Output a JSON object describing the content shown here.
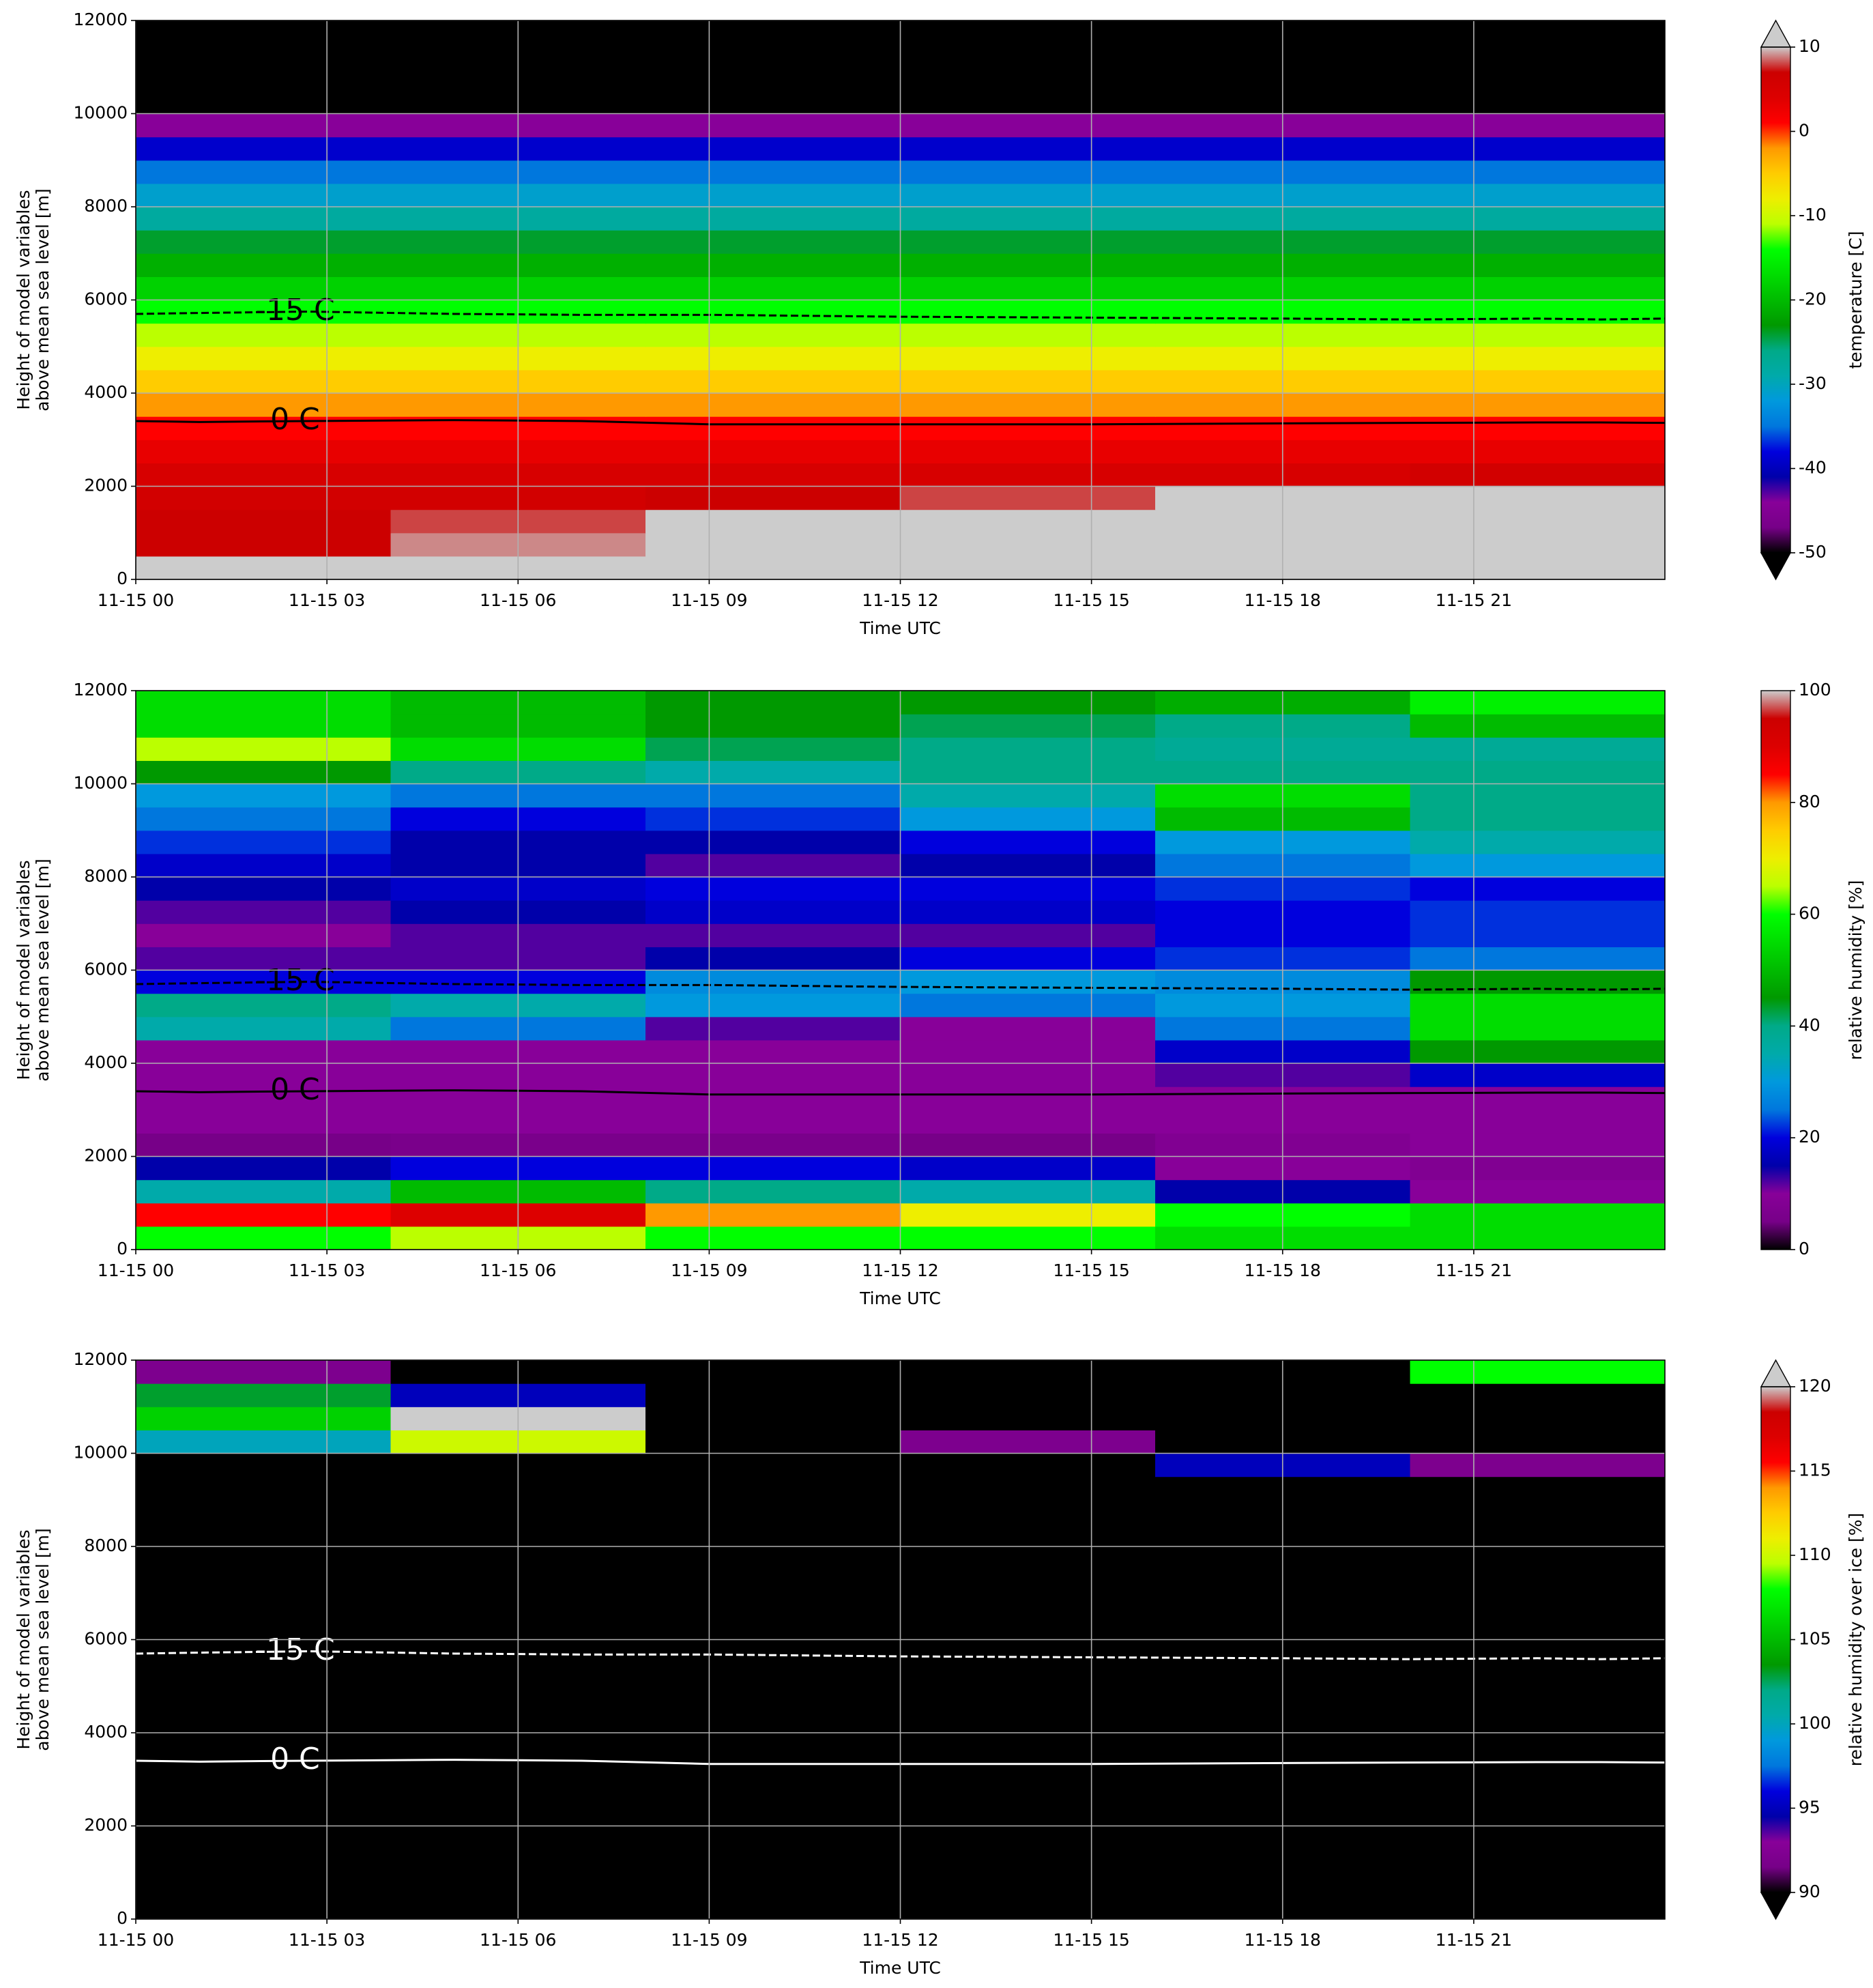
{
  "chart_data": [
    {
      "type": "heatmap",
      "xlabel": "Time UTC",
      "ylabel": [
        "Height of model variables",
        "above mean sea level [m]"
      ],
      "x": [
        0,
        4,
        8,
        12,
        16,
        20,
        24
      ],
      "y": [
        0,
        500,
        1000,
        1500,
        2000,
        2500,
        3000,
        3500,
        4000,
        4500,
        5000,
        5500,
        6000,
        6500,
        7000,
        7500,
        8000,
        8500,
        9000,
        9500,
        10000,
        10500,
        11000,
        11500,
        12000
      ],
      "z": [
        [
          12,
          12,
          12,
          12,
          12,
          12
        ],
        [
          7,
          9,
          12,
          12,
          12,
          12
        ],
        [
          7,
          8,
          11,
          12,
          12,
          12
        ],
        [
          6,
          6,
          7,
          8,
          11,
          12
        ],
        [
          5,
          5,
          5,
          5,
          5,
          6
        ],
        [
          3,
          3,
          3,
          3,
          3,
          3
        ],
        [
          1,
          1,
          1,
          1,
          1,
          1
        ],
        [
          -2,
          -2,
          -2,
          -2,
          -2,
          -2
        ],
        [
          -5,
          -5,
          -5,
          -5,
          -5,
          -5
        ],
        [
          -8,
          -8,
          -8,
          -8,
          -8,
          -8
        ],
        [
          -11,
          -11,
          -11,
          -11,
          -11,
          -11
        ],
        [
          -14,
          -14,
          -14,
          -14,
          -14,
          -14
        ],
        [
          -18,
          -18,
          -18,
          -18,
          -18,
          -18
        ],
        [
          -21,
          -21,
          -21,
          -21,
          -21,
          -21
        ],
        [
          -24,
          -24,
          -24,
          -24,
          -24,
          -24
        ],
        [
          -28,
          -28,
          -28,
          -28,
          -28,
          -28
        ],
        [
          -31,
          -31,
          -31,
          -31,
          -31,
          -31
        ],
        [
          -35,
          -35,
          -35,
          -35,
          -35,
          -35
        ],
        [
          -39,
          -39,
          -39,
          -39,
          -39,
          -39
        ],
        [
          -44,
          -44,
          -44,
          -44,
          -44,
          -44
        ],
        [
          -55,
          -55,
          -55,
          -55,
          -55,
          -55
        ],
        [
          -55,
          -55,
          -55,
          -55,
          -55,
          -55
        ],
        [
          -55,
          -55,
          -55,
          -55,
          -55,
          -55
        ],
        [
          -55,
          -55,
          -55,
          -55,
          -55,
          -55
        ]
      ],
      "xlim": [
        0,
        24
      ],
      "ylim": [
        0,
        12000
      ],
      "xticks": [
        {
          "value": 0,
          "label": "11-15 00"
        },
        {
          "value": 3,
          "label": "11-15 03"
        },
        {
          "value": 6,
          "label": "11-15 06"
        },
        {
          "value": 9,
          "label": "11-15 09"
        },
        {
          "value": 12,
          "label": "11-15 12"
        },
        {
          "value": 15,
          "label": "11-15 15"
        },
        {
          "value": 18,
          "label": "11-15 18"
        },
        {
          "value": 21,
          "label": "11-15 21"
        }
      ],
      "yticks": [
        0,
        2000,
        4000,
        6000,
        8000,
        10000,
        12000
      ],
      "grid": true,
      "colormap": "nipy_spectral",
      "colorbar": {
        "label": "temperature [C]",
        "clim": [
          -50,
          10
        ],
        "ticks": [
          -50,
          -40,
          -30,
          -20,
          -10,
          0,
          10
        ],
        "extend": "both"
      },
      "contours": {
        "color": "#000000",
        "x": [
          0,
          1,
          2.7,
          5,
          7,
          9,
          12,
          15,
          18,
          20,
          22,
          23,
          24
        ],
        "lines": [
          {
            "label": "-15 C",
            "style": "dashed",
            "y": [
              5700,
              5720,
              5750,
              5700,
              5680,
              5680,
              5640,
              5620,
              5600,
              5580,
              5600,
              5580,
              5600
            ]
          },
          {
            "label": "0 C",
            "style": "solid",
            "y": [
              3400,
              3380,
              3400,
              3420,
              3400,
              3330,
              3330,
              3330,
              3350,
              3360,
              3370,
              3370,
              3360
            ]
          }
        ]
      }
    },
    {
      "type": "heatmap",
      "xlabel": "Time UTC",
      "ylabel": [
        "Height of model variables",
        "above mean sea level [m]"
      ],
      "x": [
        0,
        4,
        8,
        12,
        16,
        20,
        24
      ],
      "y": [
        0,
        500,
        1000,
        1500,
        2000,
        2500,
        3000,
        3500,
        4000,
        4500,
        5000,
        5500,
        6000,
        6500,
        7000,
        7500,
        8000,
        8500,
        9000,
        9500,
        10000,
        10500,
        11000,
        11500,
        12000
      ],
      "z": [
        [
          60,
          65,
          60,
          60,
          55,
          55
        ],
        [
          85,
          90,
          80,
          70,
          60,
          55
        ],
        [
          35,
          50,
          40,
          35,
          15,
          10
        ],
        [
          15,
          20,
          20,
          18,
          10,
          8
        ],
        [
          5,
          6,
          6,
          5,
          8,
          10
        ],
        [
          10,
          10,
          10,
          10,
          10,
          10
        ],
        [
          10,
          10,
          10,
          10,
          10,
          10
        ],
        [
          10,
          10,
          10,
          10,
          12,
          18
        ],
        [
          10,
          10,
          10,
          10,
          18,
          45
        ],
        [
          35,
          25,
          12,
          10,
          25,
          55
        ],
        [
          40,
          35,
          30,
          25,
          30,
          55
        ],
        [
          20,
          20,
          28,
          30,
          28,
          45
        ],
        [
          12,
          12,
          15,
          20,
          22,
          25
        ],
        [
          10,
          12,
          12,
          12,
          20,
          22
        ],
        [
          12,
          15,
          18,
          18,
          20,
          22
        ],
        [
          15,
          18,
          20,
          20,
          22,
          20
        ],
        [
          18,
          15,
          12,
          15,
          25,
          30
        ],
        [
          22,
          15,
          15,
          20,
          30,
          35
        ],
        [
          25,
          20,
          22,
          30,
          50,
          40
        ],
        [
          30,
          25,
          25,
          35,
          55,
          40
        ],
        [
          45,
          40,
          35,
          40,
          40,
          40
        ],
        [
          65,
          55,
          42,
          40,
          38,
          38
        ],
        [
          55,
          50,
          45,
          42,
          40,
          50
        ],
        [
          55,
          50,
          45,
          45,
          48,
          58
        ]
      ],
      "xlim": [
        0,
        24
      ],
      "ylim": [
        0,
        12000
      ],
      "xticks": [
        {
          "value": 0,
          "label": "11-15 00"
        },
        {
          "value": 3,
          "label": "11-15 03"
        },
        {
          "value": 6,
          "label": "11-15 06"
        },
        {
          "value": 9,
          "label": "11-15 09"
        },
        {
          "value": 12,
          "label": "11-15 12"
        },
        {
          "value": 15,
          "label": "11-15 15"
        },
        {
          "value": 18,
          "label": "11-15 18"
        },
        {
          "value": 21,
          "label": "11-15 21"
        }
      ],
      "yticks": [
        0,
        2000,
        4000,
        6000,
        8000,
        10000,
        12000
      ],
      "grid": true,
      "colormap": "nipy_spectral",
      "colorbar": {
        "label": "relative humidity [%]",
        "clim": [
          0,
          100
        ],
        "ticks": [
          0,
          20,
          40,
          60,
          80,
          100
        ],
        "extend": "neither"
      },
      "contours": {
        "color": "#000000",
        "x": [
          0,
          1,
          2.7,
          5,
          7,
          9,
          12,
          15,
          18,
          20,
          22,
          23,
          24
        ],
        "lines": [
          {
            "label": "-15 C",
            "style": "dashed",
            "y": [
              5700,
              5720,
              5750,
              5700,
              5680,
              5680,
              5640,
              5620,
              5600,
              5580,
              5600,
              5580,
              5600
            ]
          },
          {
            "label": "0 C",
            "style": "solid",
            "y": [
              3400,
              3380,
              3400,
              3420,
              3400,
              3330,
              3330,
              3330,
              3350,
              3360,
              3370,
              3370,
              3360
            ]
          }
        ]
      }
    },
    {
      "type": "heatmap",
      "xlabel": "Time UTC",
      "ylabel": [
        "Height of model variables",
        "above mean sea level [m]"
      ],
      "x": [
        0,
        4,
        8,
        12,
        16,
        20,
        24
      ],
      "y": [
        0,
        500,
        1000,
        1500,
        2000,
        2500,
        3000,
        3500,
        4000,
        4500,
        5000,
        5500,
        6000,
        6500,
        7000,
        7500,
        8000,
        8500,
        9000,
        9500,
        10000,
        10500,
        11000,
        11500,
        12000
      ],
      "z": [
        [
          80,
          80,
          80,
          80,
          80,
          80
        ],
        [
          80,
          80,
          80,
          80,
          80,
          80
        ],
        [
          80,
          80,
          80,
          80,
          80,
          80
        ],
        [
          80,
          80,
          80,
          80,
          80,
          80
        ],
        [
          80,
          80,
          80,
          80,
          80,
          80
        ],
        [
          80,
          80,
          80,
          80,
          80,
          80
        ],
        [
          80,
          80,
          80,
          80,
          80,
          80
        ],
        [
          80,
          80,
          80,
          80,
          80,
          80
        ],
        [
          80,
          80,
          80,
          80,
          80,
          80
        ],
        [
          80,
          80,
          80,
          80,
          80,
          80
        ],
        [
          80,
          80,
          80,
          80,
          80,
          80
        ],
        [
          80,
          80,
          80,
          80,
          80,
          80
        ],
        [
          80,
          80,
          80,
          80,
          80,
          80
        ],
        [
          80,
          80,
          80,
          80,
          80,
          80
        ],
        [
          80,
          80,
          80,
          80,
          80,
          80
        ],
        [
          80,
          80,
          80,
          80,
          80,
          80
        ],
        [
          80,
          80,
          80,
          80,
          80,
          80
        ],
        [
          80,
          80,
          80,
          80,
          80,
          80
        ],
        [
          80,
          80,
          80,
          80,
          80,
          80
        ],
        [
          80,
          80,
          80,
          80,
          95,
          92
        ],
        [
          100,
          110,
          80,
          92,
          80,
          80
        ],
        [
          106,
          120,
          80,
          80,
          80,
          80
        ],
        [
          103,
          95,
          80,
          80,
          80,
          80
        ],
        [
          92,
          80,
          80,
          80,
          80,
          108
        ]
      ],
      "xlim": [
        0,
        24
      ],
      "ylim": [
        0,
        12000
      ],
      "xticks": [
        {
          "value": 0,
          "label": "11-15 00"
        },
        {
          "value": 3,
          "label": "11-15 03"
        },
        {
          "value": 6,
          "label": "11-15 06"
        },
        {
          "value": 9,
          "label": "11-15 09"
        },
        {
          "value": 12,
          "label": "11-15 12"
        },
        {
          "value": 15,
          "label": "11-15 15"
        },
        {
          "value": 18,
          "label": "11-15 18"
        },
        {
          "value": 21,
          "label": "11-15 21"
        }
      ],
      "yticks": [
        0,
        2000,
        4000,
        6000,
        8000,
        10000,
        12000
      ],
      "grid": true,
      "colormap": "nipy_spectral",
      "colorbar": {
        "label": "relative humidity over ice [%]",
        "clim": [
          90,
          120
        ],
        "ticks": [
          90,
          95,
          100,
          105,
          110,
          115,
          120
        ],
        "extend": "both"
      },
      "contours": {
        "color": "#ffffff",
        "x": [
          0,
          1,
          2.7,
          5,
          7,
          9,
          12,
          15,
          18,
          20,
          22,
          23,
          24
        ],
        "lines": [
          {
            "label": "-15 C",
            "style": "dashed",
            "y": [
              5700,
              5720,
              5750,
              5700,
              5680,
              5680,
              5640,
              5620,
              5600,
              5580,
              5600,
              5580,
              5600
            ]
          },
          {
            "label": "0 C",
            "style": "solid",
            "y": [
              3400,
              3380,
              3400,
              3420,
              3400,
              3330,
              3330,
              3330,
              3350,
              3360,
              3370,
              3370,
              3360
            ]
          }
        ]
      }
    }
  ]
}
